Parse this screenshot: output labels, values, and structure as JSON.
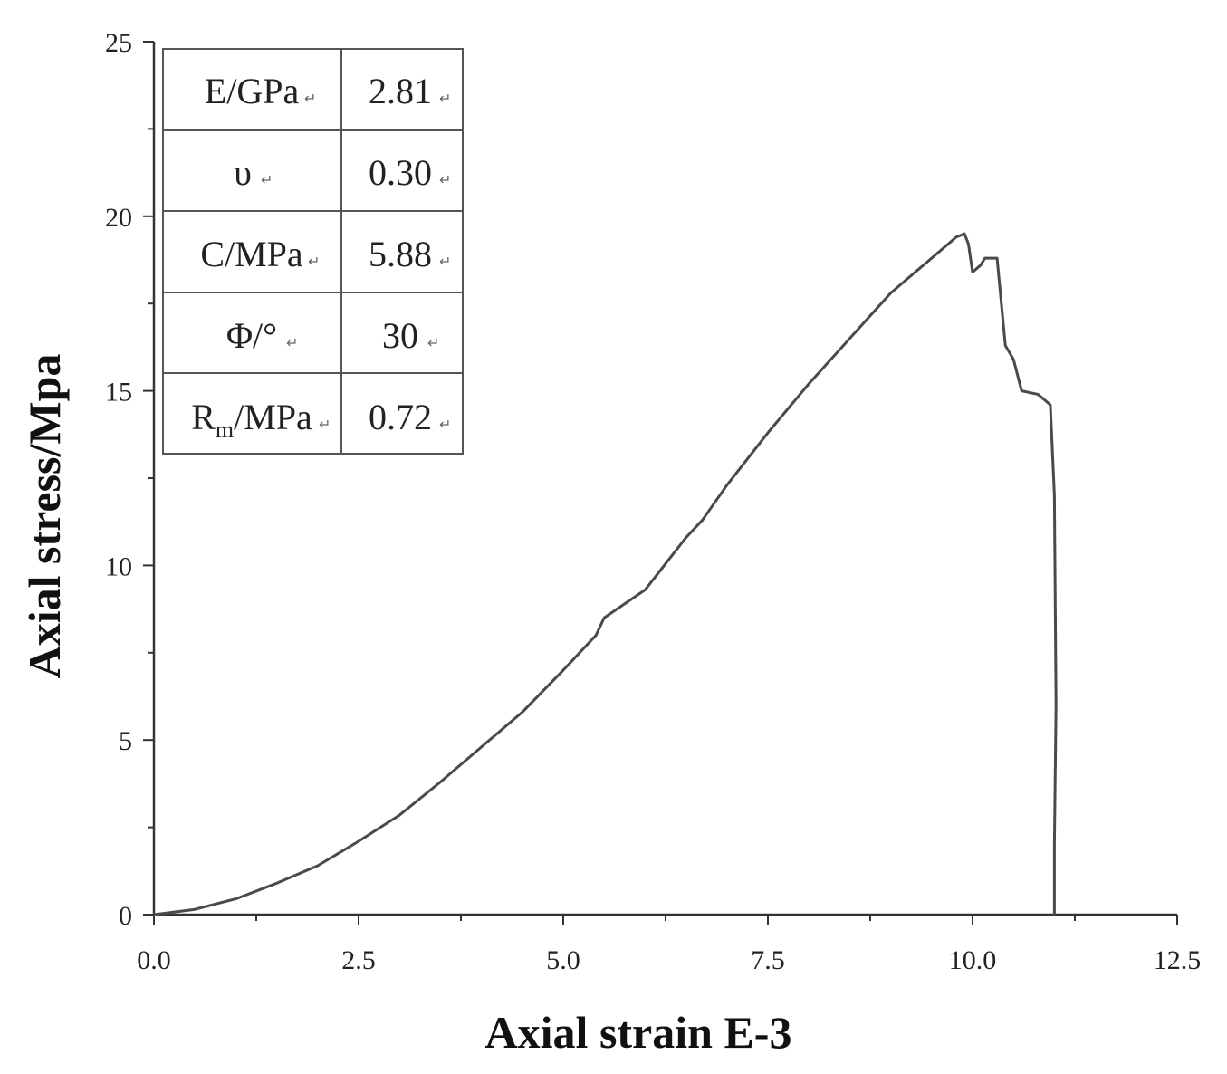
{
  "chart_data": {
    "type": "line",
    "title": "",
    "xlabel": "Axial strain E-3",
    "ylabel": "Axial stress/Mpa",
    "xlim": [
      0,
      12.5
    ],
    "ylim": [
      0,
      25
    ],
    "x_ticks": [
      "0.0",
      "2.5",
      "5.0",
      "7.5",
      "10.0",
      "12.5"
    ],
    "y_ticks": [
      "0",
      "5",
      "10",
      "15",
      "20",
      "25"
    ],
    "grid": false,
    "legend": "none",
    "line_color": "#4a4a4a",
    "series": [
      {
        "x": [
          0.0,
          0.5,
          1.0,
          1.5,
          2.0,
          2.5,
          3.0,
          3.5,
          4.0,
          4.5,
          5.0,
          5.4,
          5.5,
          6.0,
          6.5,
          6.7,
          7.0,
          7.5,
          8.0,
          8.5,
          9.0,
          9.5,
          9.8,
          9.9,
          9.95,
          10.0,
          10.1,
          10.15,
          10.3,
          10.4,
          10.5,
          10.6,
          10.8,
          10.95,
          11.0,
          11.02,
          11.0,
          11.0
        ],
        "y": [
          0.0,
          0.15,
          0.45,
          0.9,
          1.4,
          2.1,
          2.85,
          3.8,
          4.8,
          5.8,
          7.0,
          8.0,
          8.5,
          9.3,
          10.8,
          11.3,
          12.3,
          13.8,
          15.2,
          16.5,
          17.8,
          18.8,
          19.4,
          19.5,
          19.2,
          18.4,
          18.6,
          18.8,
          18.8,
          16.3,
          15.9,
          15.0,
          14.9,
          14.6,
          12.0,
          6.0,
          2.0,
          0.0
        ]
      }
    ]
  },
  "inset_table": {
    "rows": [
      {
        "param": "E/GPa",
        "value": "2.81"
      },
      {
        "param": "υ",
        "value": "0.30"
      },
      {
        "param": "C/MPa",
        "value": "5.88"
      },
      {
        "param": "Φ/°",
        "value": "30"
      },
      {
        "param": "Rm/MPa",
        "value": "0.72",
        "param_base": "R",
        "param_sub": "m",
        "param_rest": "/MPa"
      }
    ],
    "cell_mark": "↵"
  }
}
